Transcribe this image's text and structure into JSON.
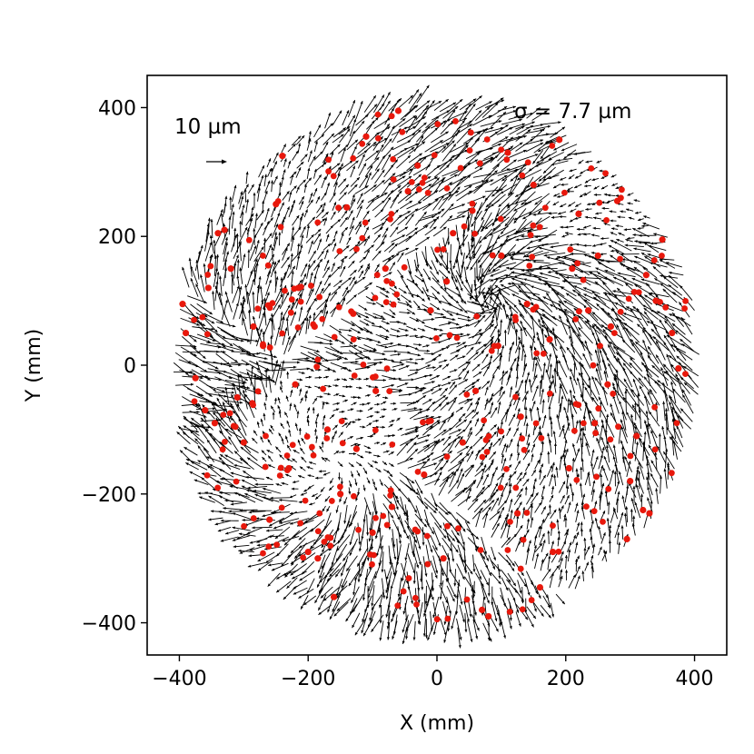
{
  "chart_data": {
    "type": "scatter",
    "subtype": "quiver",
    "xlabel": "X (mm)",
    "ylabel": "Y (mm)",
    "xlim": [
      -450,
      450
    ],
    "ylim": [
      -450,
      450
    ],
    "xticks": [
      -400,
      -200,
      0,
      200,
      400
    ],
    "yticks": [
      -400,
      -200,
      0,
      200,
      400
    ],
    "xtick_labels": [
      "−400",
      "−200",
      "0",
      "200",
      "400"
    ],
    "ytick_labels": [
      "−400",
      "−200",
      "0",
      "200",
      "400"
    ],
    "grid": false,
    "field_radius_mm": 410,
    "arrow_color": "#000000",
    "point_color": "#e8180c",
    "annotations": {
      "scale_label": "10 µm",
      "sigma_label": "σ = 7.7 µm"
    },
    "highlighted_points": [
      {
        "x": -395,
        "y": 95
      },
      {
        "x": -390,
        "y": 50
      },
      {
        "x": -375,
        "y": -20
      },
      {
        "x": -360,
        "y": -70
      },
      {
        "x": -340,
        "y": 205
      },
      {
        "x": -330,
        "y": 210
      },
      {
        "x": -320,
        "y": 150
      },
      {
        "x": -310,
        "y": -50
      },
      {
        "x": -300,
        "y": -120
      },
      {
        "x": -285,
        "y": 60
      },
      {
        "x": -270,
        "y": 30
      },
      {
        "x": -260,
        "y": -240
      },
      {
        "x": -240,
        "y": 325
      },
      {
        "x": -230,
        "y": -160
      },
      {
        "x": -215,
        "y": 120
      },
      {
        "x": -200,
        "y": -290
      },
      {
        "x": -185,
        "y": -300
      },
      {
        "x": -170,
        "y": -100
      },
      {
        "x": -160,
        "y": -360
      },
      {
        "x": -150,
        "y": -200
      },
      {
        "x": -140,
        "y": 245
      },
      {
        "x": -125,
        "y": -130
      },
      {
        "x": -110,
        "y": 355
      },
      {
        "x": -100,
        "y": -260
      },
      {
        "x": -80,
        "y": 150
      },
      {
        "x": -60,
        "y": 395
      },
      {
        "x": -45,
        "y": 270
      },
      {
        "x": -30,
        "y": 310
      },
      {
        "x": -10,
        "y": 85
      },
      {
        "x": 10,
        "y": -300
      },
      {
        "x": 25,
        "y": 205
      },
      {
        "x": 40,
        "y": -120
      },
      {
        "x": 55,
        "y": 240
      },
      {
        "x": 70,
        "y": -380
      },
      {
        "x": 80,
        "y": -390
      },
      {
        "x": 95,
        "y": 30
      },
      {
        "x": 110,
        "y": 330
      },
      {
        "x": 125,
        "y": -230
      },
      {
        "x": 140,
        "y": 95
      },
      {
        "x": 160,
        "y": -345
      },
      {
        "x": 175,
        "y": 40
      },
      {
        "x": 190,
        "y": 350
      },
      {
        "x": 205,
        "y": -160
      },
      {
        "x": 220,
        "y": 235
      },
      {
        "x": 235,
        "y": 85
      },
      {
        "x": 250,
        "y": 170
      },
      {
        "x": 265,
        "y": -30
      },
      {
        "x": 280,
        "y": 255
      },
      {
        "x": 295,
        "y": -270
      },
      {
        "x": 310,
        "y": -110
      },
      {
        "x": 320,
        "y": -225
      },
      {
        "x": 330,
        "y": -230
      },
      {
        "x": 340,
        "y": 100
      },
      {
        "x": 350,
        "y": 195
      },
      {
        "x": 365,
        "y": 50
      },
      {
        "x": 375,
        "y": -5
      },
      {
        "x": -355,
        "y": 120
      },
      {
        "x": -345,
        "y": -90
      },
      {
        "x": -250,
        "y": 250
      },
      {
        "x": -220,
        "y": -30
      },
      {
        "x": -190,
        "y": 60
      },
      {
        "x": -130,
        "y": 80
      },
      {
        "x": -95,
        "y": -40
      },
      {
        "x": -70,
        "y": -220
      },
      {
        "x": -20,
        "y": -170
      },
      {
        "x": 15,
        "y": 130
      },
      {
        "x": 60,
        "y": -40
      },
      {
        "x": 100,
        "y": 170
      },
      {
        "x": 130,
        "y": -80
      },
      {
        "x": 150,
        "y": 280
      },
      {
        "x": 180,
        "y": -290
      },
      {
        "x": 210,
        "y": 150
      },
      {
        "x": 245,
        "y": -90
      },
      {
        "x": 270,
        "y": 60
      },
      {
        "x": 300,
        "y": -180
      },
      {
        "x": 325,
        "y": 140
      }
    ]
  }
}
